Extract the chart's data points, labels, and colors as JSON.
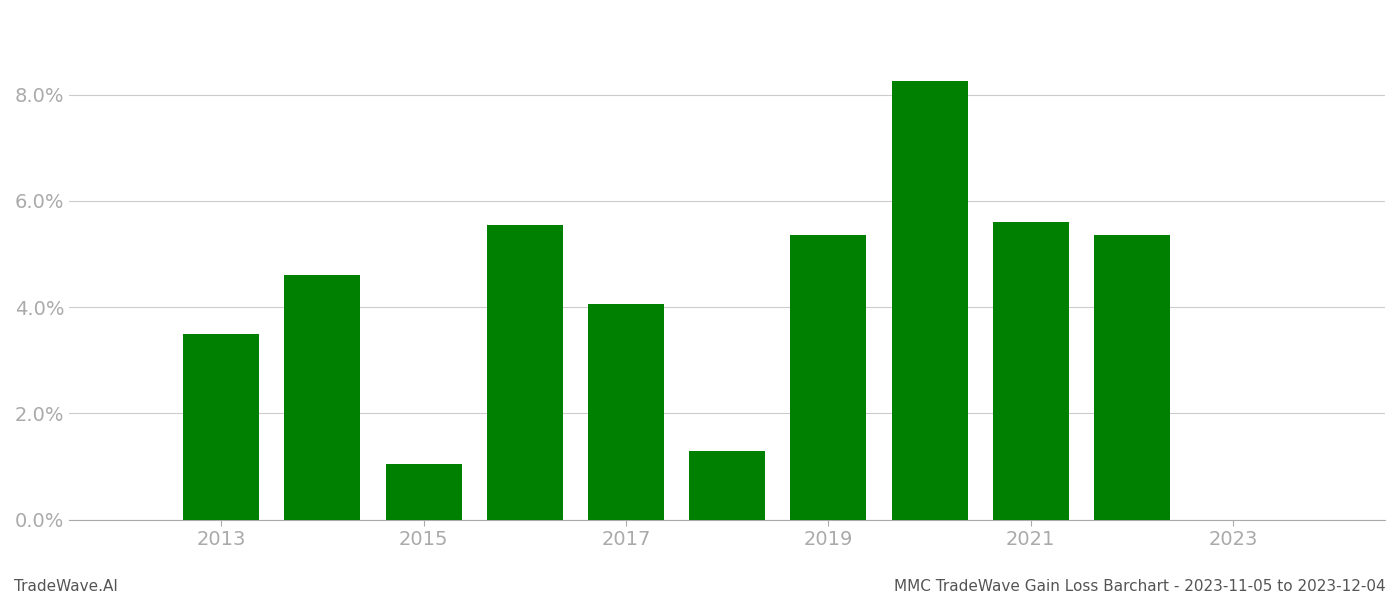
{
  "years": [
    2013,
    2014,
    2015,
    2016,
    2017,
    2018,
    2019,
    2020,
    2021,
    2022,
    2023
  ],
  "values": [
    0.035,
    0.046,
    0.0105,
    0.0555,
    0.0405,
    0.013,
    0.0535,
    0.0825,
    0.056,
    0.0535,
    0.0
  ],
  "bar_color": "#008000",
  "background_color": "#ffffff",
  "grid_color": "#cccccc",
  "axis_color": "#aaaaaa",
  "tick_label_color": "#aaaaaa",
  "xlim": [
    2011.5,
    2024.5
  ],
  "ylim": [
    0.0,
    0.095
  ],
  "yticks": [
    0.0,
    0.02,
    0.04,
    0.06,
    0.08
  ],
  "xticks": [
    2013,
    2015,
    2017,
    2019,
    2021,
    2023
  ],
  "bar_width": 0.75,
  "footer_left": "TradeWave.AI",
  "footer_right": "MMC TradeWave Gain Loss Barchart - 2023-11-05 to 2023-12-04",
  "footer_fontsize": 11,
  "tick_fontsize": 14,
  "figsize": [
    14.0,
    6.0
  ],
  "dpi": 100
}
